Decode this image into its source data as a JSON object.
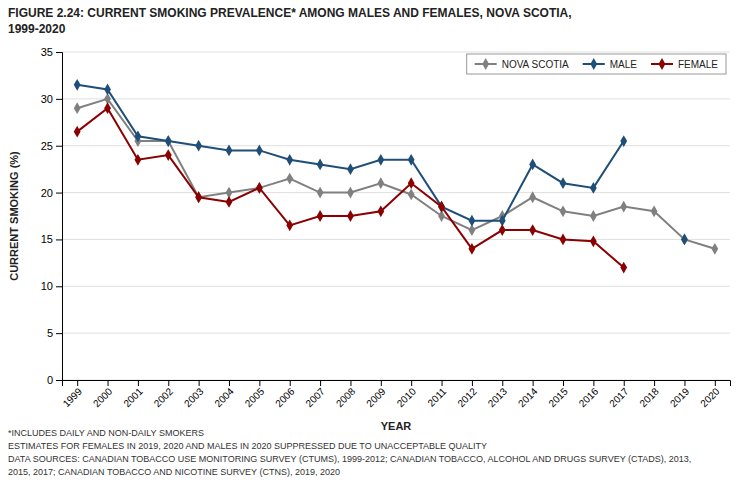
{
  "chart_data": {
    "type": "line",
    "title": "FIGURE 2.24: CURRENT SMOKING PREVALENCE* AMONG MALES AND FEMALES, NOVA SCOTIA,",
    "subtitle": "1999-2020",
    "xlabel": "YEAR",
    "ylabel": "CURRENT SMOKING (%)",
    "x": [
      1999,
      2000,
      2001,
      2002,
      2003,
      2004,
      2005,
      2006,
      2007,
      2008,
      2009,
      2010,
      2011,
      2012,
      2013,
      2014,
      2015,
      2016,
      2017,
      2018,
      2019,
      2020
    ],
    "series": [
      {
        "name": "NOVA SCOTIA",
        "color": "#808080",
        "marker": "diamond",
        "line_style": "solid",
        "values": [
          29.0,
          30.0,
          25.5,
          25.5,
          19.5,
          20.0,
          20.5,
          21.5,
          20.0,
          20.0,
          21.0,
          19.8,
          17.5,
          16.0,
          17.5,
          19.5,
          18.0,
          17.5,
          18.5,
          18.0,
          15.0,
          14.0
        ]
      },
      {
        "name": "MALE",
        "color": "#1F4E79",
        "marker": "diamond",
        "line_style": "solid",
        "values": [
          31.5,
          31.0,
          26.0,
          25.5,
          25.0,
          24.5,
          24.5,
          23.5,
          23.0,
          22.5,
          23.5,
          23.5,
          18.5,
          17.0,
          17.0,
          23.0,
          21.0,
          20.5,
          25.5,
          null,
          15.0,
          null
        ]
      },
      {
        "name": "FEMALE",
        "color": "#8B0000",
        "marker": "diamond",
        "line_style": "solid",
        "values": [
          26.5,
          29.0,
          23.5,
          24.0,
          19.5,
          19.0,
          20.5,
          16.5,
          17.5,
          17.5,
          18.0,
          21.0,
          18.5,
          14.0,
          16.0,
          16.0,
          15.0,
          14.8,
          12.0,
          null,
          null,
          null
        ]
      }
    ],
    "xlim": [
      1998.5,
      2020.5
    ],
    "xticks": [
      1999,
      2000,
      2001,
      2002,
      2003,
      2004,
      2005,
      2006,
      2007,
      2008,
      2009,
      2010,
      2011,
      2012,
      2013,
      2014,
      2015,
      2016,
      2017,
      2018,
      2019,
      2020
    ],
    "ylim": [
      0,
      35
    ],
    "yticks": [
      0,
      5,
      10,
      15,
      20,
      25,
      30,
      35
    ],
    "grid": true,
    "legend": "upper right",
    "annotations": [
      "*INCLUDES DAILY AND NON-DAILY SMOKERS",
      "ESTIMATES FOR FEMALES IN 2019, 2020 AND MALES IN 2020 SUPPRESSED DUE TO UNACCEPTABLE QUALITY",
      "DATA SOURCES: CANADIAN TOBACCO USE MONITORING SURVEY (CTUMS), 1999-2012; CANADIAN TOBACCO, ALCOHOL AND DRUGS SURVEY (CTADS), 2013,",
      "2015, 2017; CANADIAN TOBACCO AND NICOTINE SURVEY (CTNS), 2019, 2020"
    ]
  }
}
